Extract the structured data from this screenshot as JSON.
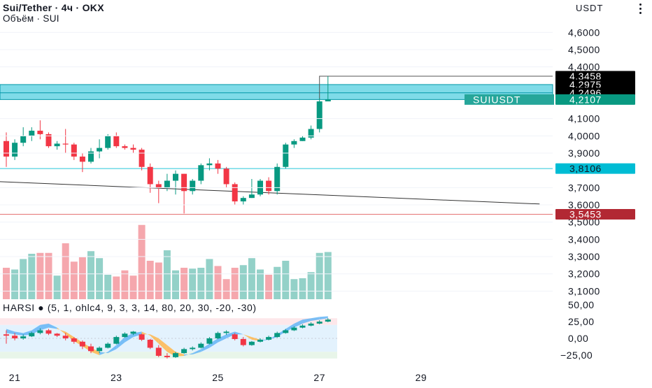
{
  "header": {
    "symbol_line": "Sui/Tether · 4ч · OKX",
    "volume_line": "Объём · SUI",
    "currency": "USDT",
    "menu_icon": "vertical-dots-icon"
  },
  "price_axis": {
    "ticks": [
      "4,6000",
      "4,5000",
      "4,4000",
      "4,1000",
      "4,0000",
      "3,9000",
      "3,7000",
      "3,6000",
      "3,5000",
      "3,4000",
      "3,3000",
      "3,2000",
      "3,1000"
    ],
    "tick_values": [
      4.6,
      4.5,
      4.4,
      4.1,
      4.0,
      3.9,
      3.7,
      3.6,
      3.5,
      3.4,
      3.3,
      3.2,
      3.1
    ]
  },
  "price_labels": [
    {
      "text": "4,3458",
      "value": 4.3458,
      "bg": "#000000",
      "color": "#ffffff"
    },
    {
      "text": "4,2975",
      "value": 4.2975,
      "bg": "#000000",
      "color": "#ffffff"
    },
    {
      "text": "4,2496",
      "value": 4.2496,
      "bg": "#000000",
      "color": "#ffffff"
    },
    {
      "text": "4,2107",
      "value": 4.2107,
      "bg": "#089981",
      "color": "#ffffff"
    },
    {
      "text": "3,8106",
      "value": 3.8106,
      "bg": "#00bcd4",
      "color": "#131722"
    },
    {
      "text": "3,5453",
      "value": 3.5453,
      "bg": "#b22833",
      "color": "#ffffff"
    }
  ],
  "symbol_tag": {
    "text": "SUIUSDT",
    "value": 4.2107,
    "bg": "#26a69a"
  },
  "zone": {
    "top": 4.2975,
    "bottom": 4.2107,
    "fill": "#7fdbe8",
    "stroke": "#0097a7"
  },
  "horizontal_lines": [
    {
      "name": "support-line-cyan",
      "value": 3.8106,
      "color": "#26c6da"
    },
    {
      "name": "support-line-red",
      "value": 3.5453,
      "color": "#e57373"
    }
  ],
  "trendline": {
    "start": {
      "bar": -1,
      "value": 3.735
    },
    "end": {
      "bar": 63,
      "value": 3.605
    },
    "color": "#333333"
  },
  "spike_line": {
    "bar": 37,
    "top": 4.3458,
    "right_value": 4.3458,
    "color": "#555555"
  },
  "time_axis": {
    "labels": [
      {
        "text": "21",
        "bar": 1
      },
      {
        "text": "23",
        "bar": 13
      },
      {
        "text": "25",
        "bar": 25
      },
      {
        "text": "27",
        "bar": 37
      },
      {
        "text": "29",
        "bar": 49
      }
    ]
  },
  "candles": [
    {
      "o": 3.97,
      "h": 4.02,
      "l": 3.82,
      "c": 3.88
    },
    {
      "o": 3.88,
      "h": 3.98,
      "l": 3.86,
      "c": 3.96
    },
    {
      "o": 3.96,
      "h": 4.05,
      "l": 3.94,
      "c": 4.0
    },
    {
      "o": 4.0,
      "h": 4.05,
      "l": 3.97,
      "c": 4.03
    },
    {
      "o": 4.03,
      "h": 4.09,
      "l": 3.98,
      "c": 4.01
    },
    {
      "o": 4.01,
      "h": 4.02,
      "l": 3.93,
      "c": 3.94
    },
    {
      "o": 3.94,
      "h": 3.97,
      "l": 3.92,
      "c": 3.955
    },
    {
      "o": 3.955,
      "h": 4.04,
      "l": 3.9,
      "c": 3.95
    },
    {
      "o": 3.95,
      "h": 3.96,
      "l": 3.86,
      "c": 3.88
    },
    {
      "o": 3.88,
      "h": 3.9,
      "l": 3.79,
      "c": 3.85
    },
    {
      "o": 3.85,
      "h": 3.93,
      "l": 3.84,
      "c": 3.91
    },
    {
      "o": 3.91,
      "h": 3.98,
      "l": 3.87,
      "c": 3.93
    },
    {
      "o": 3.93,
      "h": 4.01,
      "l": 3.92,
      "c": 4.0
    },
    {
      "o": 4.0,
      "h": 4.02,
      "l": 3.93,
      "c": 3.94
    },
    {
      "o": 3.94,
      "h": 3.95,
      "l": 3.92,
      "c": 3.93
    },
    {
      "o": 3.93,
      "h": 3.95,
      "l": 3.9,
      "c": 3.92
    },
    {
      "o": 3.92,
      "h": 3.93,
      "l": 3.8,
      "c": 3.82
    },
    {
      "o": 3.82,
      "h": 3.84,
      "l": 3.67,
      "c": 3.72
    },
    {
      "o": 3.72,
      "h": 3.74,
      "l": 3.61,
      "c": 3.7
    },
    {
      "o": 3.7,
      "h": 3.78,
      "l": 3.68,
      "c": 3.74
    },
    {
      "o": 3.74,
      "h": 3.8,
      "l": 3.66,
      "c": 3.78
    },
    {
      "o": 3.78,
      "h": 3.78,
      "l": 3.55,
      "c": 3.68
    },
    {
      "o": 3.68,
      "h": 3.75,
      "l": 3.66,
      "c": 3.74
    },
    {
      "o": 3.74,
      "h": 3.84,
      "l": 3.72,
      "c": 3.83
    },
    {
      "o": 3.83,
      "h": 3.87,
      "l": 3.8,
      "c": 3.84
    },
    {
      "o": 3.84,
      "h": 3.86,
      "l": 3.78,
      "c": 3.81
    },
    {
      "o": 3.81,
      "h": 3.82,
      "l": 3.7,
      "c": 3.72
    },
    {
      "o": 3.72,
      "h": 3.73,
      "l": 3.6,
      "c": 3.62
    },
    {
      "o": 3.62,
      "h": 3.65,
      "l": 3.6,
      "c": 3.64
    },
    {
      "o": 3.64,
      "h": 3.75,
      "l": 3.64,
      "c": 3.66
    },
    {
      "o": 3.66,
      "h": 3.75,
      "l": 3.65,
      "c": 3.74
    },
    {
      "o": 3.74,
      "h": 3.76,
      "l": 3.66,
      "c": 3.68
    },
    {
      "o": 3.68,
      "h": 3.84,
      "l": 3.66,
      "c": 3.82
    },
    {
      "o": 3.82,
      "h": 3.96,
      "l": 3.81,
      "c": 3.95
    },
    {
      "o": 3.95,
      "h": 3.98,
      "l": 3.93,
      "c": 3.97
    },
    {
      "o": 3.97,
      "h": 4.0,
      "l": 3.97,
      "c": 3.99
    },
    {
      "o": 3.99,
      "h": 4.06,
      "l": 3.98,
      "c": 4.04
    },
    {
      "o": 4.04,
      "h": 4.22,
      "l": 4.02,
      "c": 4.2
    },
    {
      "o": 4.2,
      "h": 4.3458,
      "l": 4.2,
      "c": 4.2107
    }
  ],
  "volume": {
    "values": [
      0.36,
      0.34,
      0.46,
      0.52,
      0.53,
      0.53,
      0.27,
      0.64,
      0.43,
      0.48,
      0.55,
      0.47,
      0.28,
      0.26,
      0.33,
      0.27,
      0.85,
      0.44,
      0.42,
      0.56,
      0.33,
      0.36,
      0.35,
      0.36,
      0.46,
      0.38,
      0.23,
      0.36,
      0.39,
      0.47,
      0.34,
      0.28,
      0.37,
      0.44,
      0.23,
      0.24,
      0.31,
      0.53,
      0.54
    ],
    "max_price_equiv_scale": "relative"
  },
  "indicator": {
    "legend": "HARSI ● (5, 1, ohlc4, 9, 3, 3, 14, 80, 20, 30, -20, -30)",
    "ticks": [
      {
        "text": "50,00",
        "value": 50
      },
      {
        "text": "25,00",
        "value": 25
      },
      {
        "text": "0,00",
        "value": 0
      },
      {
        "text": "−25,00",
        "value": -25
      }
    ],
    "bands": [
      {
        "from": 20,
        "to": 30,
        "color": "#fde7ea"
      },
      {
        "from": -20,
        "to": 20,
        "color": "#e3f2fd"
      },
      {
        "from": -30,
        "to": -20,
        "color": "#e8f5e9"
      }
    ],
    "candles": [
      {
        "o": 6,
        "h": 12,
        "l": -8,
        "c": 4
      },
      {
        "o": 4,
        "h": 8,
        "l": -3,
        "c": 0
      },
      {
        "o": 0,
        "h": 6,
        "l": -2,
        "c": 3
      },
      {
        "o": 3,
        "h": 10,
        "l": 2,
        "c": 8
      },
      {
        "o": 8,
        "h": 15,
        "l": 6,
        "c": 12
      },
      {
        "o": 12,
        "h": 14,
        "l": 5,
        "c": 7
      },
      {
        "o": 7,
        "h": 8,
        "l": 2,
        "c": 4
      },
      {
        "o": 4,
        "h": 8,
        "l": -3,
        "c": 0
      },
      {
        "o": 0,
        "h": 2,
        "l": -8,
        "c": -5
      },
      {
        "o": -5,
        "h": -3,
        "l": -16,
        "c": -12
      },
      {
        "o": -12,
        "h": -8,
        "l": -22,
        "c": -19
      },
      {
        "o": -19,
        "h": -12,
        "l": -22,
        "c": -14
      },
      {
        "o": -14,
        "h": -6,
        "l": -15,
        "c": -8
      },
      {
        "o": -8,
        "h": 4,
        "l": -9,
        "c": 2
      },
      {
        "o": 2,
        "h": 9,
        "l": 1,
        "c": 7
      },
      {
        "o": 7,
        "h": 11,
        "l": 5,
        "c": 10
      },
      {
        "o": 6,
        "h": 7,
        "l": -4,
        "c": -2
      },
      {
        "o": -2,
        "h": -1,
        "l": -16,
        "c": -14
      },
      {
        "o": -14,
        "h": -10,
        "l": -28,
        "c": -26
      },
      {
        "o": -26,
        "h": -22,
        "l": -30,
        "c": -28
      },
      {
        "o": -28,
        "h": -20,
        "l": -29,
        "c": -22
      },
      {
        "o": -22,
        "h": -14,
        "l": -23,
        "c": -16
      },
      {
        "o": -16,
        "h": -12,
        "l": -18,
        "c": -14
      },
      {
        "o": -14,
        "h": -6,
        "l": -15,
        "c": -8
      },
      {
        "o": -8,
        "h": 2,
        "l": -9,
        "c": 0
      },
      {
        "o": 0,
        "h": 10,
        "l": -1,
        "c": 8
      },
      {
        "o": 8,
        "h": 12,
        "l": 5,
        "c": 10
      },
      {
        "o": 6,
        "h": 8,
        "l": -3,
        "c": -1
      },
      {
        "o": -1,
        "h": 2,
        "l": -12,
        "c": -10
      },
      {
        "o": -10,
        "h": -4,
        "l": -11,
        "c": -5
      },
      {
        "o": -5,
        "h": 0,
        "l": -6,
        "c": -2
      },
      {
        "o": -2,
        "h": 4,
        "l": -3,
        "c": 2
      },
      {
        "o": 2,
        "h": 10,
        "l": 1,
        "c": 8
      },
      {
        "o": 8,
        "h": 14,
        "l": 7,
        "c": 12
      },
      {
        "o": 12,
        "h": 18,
        "l": 11,
        "c": 16
      },
      {
        "o": 16,
        "h": 21,
        "l": 15,
        "c": 19
      },
      {
        "o": 19,
        "h": 24,
        "l": 18,
        "c": 22
      },
      {
        "o": 22,
        "h": 27,
        "l": 21,
        "c": 25
      },
      {
        "o": 25,
        "h": 30,
        "l": 24,
        "c": 28
      }
    ],
    "ribbon_fast": [
      14,
      10,
      8,
      12,
      20,
      22,
      16,
      6,
      -4,
      -12,
      -20,
      -25,
      -20,
      -10,
      2,
      8,
      10,
      4,
      -8,
      -20,
      -27,
      -26,
      -22,
      -16,
      -8,
      0,
      6,
      10,
      6,
      -2,
      -4,
      -2,
      6,
      14,
      22,
      28,
      30,
      32,
      33
    ],
    "ribbon_slow": [
      8,
      6,
      4,
      6,
      12,
      16,
      14,
      10,
      2,
      -6,
      -14,
      -20,
      -22,
      -16,
      -6,
      2,
      6,
      6,
      0,
      -10,
      -20,
      -24,
      -24,
      -20,
      -14,
      -6,
      0,
      6,
      6,
      2,
      -2,
      -2,
      2,
      10,
      16,
      22,
      26,
      28,
      30
    ],
    "ribbon_up_color": "#64b5f6",
    "ribbon_down_color": "#ffb74d"
  },
  "colors": {
    "up": "#089981",
    "down": "#f23645",
    "vol_up": "#93d1c8",
    "vol_down": "#f5a7ad",
    "grid": "#f0f3fa",
    "axis_text": "#131722"
  }
}
